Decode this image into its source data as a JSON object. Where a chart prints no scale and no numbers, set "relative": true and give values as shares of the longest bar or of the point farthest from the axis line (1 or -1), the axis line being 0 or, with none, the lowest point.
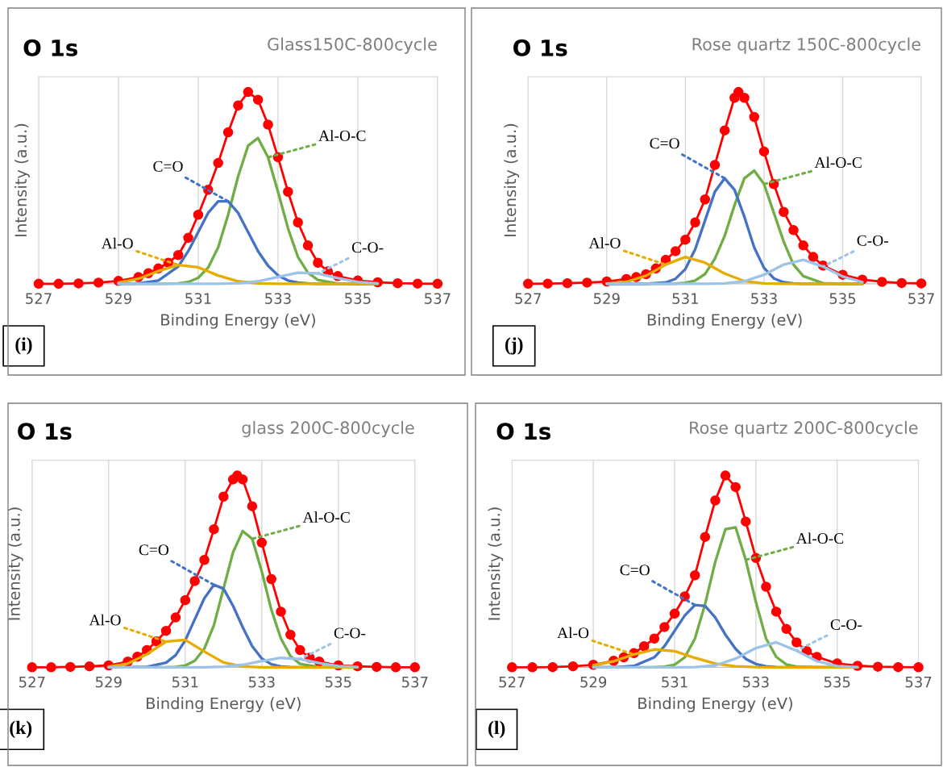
{
  "chart_data": [
    {
      "type": "line",
      "title": "O 1s",
      "subtitle": "Glass150C-800cycle",
      "xlabel": "Binding Energy (eV)",
      "ylabel": "Intensity (a.u.)",
      "relative": true,
      "grid": "x",
      "xlim": [
        527,
        537
      ],
      "xticks": [
        527,
        529,
        531,
        533,
        535,
        537
      ],
      "x": [
        529,
        529.5,
        530,
        530.5,
        531,
        531.5,
        532,
        532.5,
        533,
        533.5,
        534,
        534.5,
        535,
        535.5
      ],
      "annotations": [
        {
          "text": "Al-O-C",
          "x": 532.75,
          "y": 0.66
        },
        {
          "text": "C=O",
          "x": 531.75,
          "y": 0.43
        },
        {
          "text": "Al-O",
          "x": 530.5,
          "y": 0.098
        },
        {
          "text": "C-O-",
          "x": 534,
          "y": 0.054
        },
        "(i)"
      ],
      "series": [
        {
          "color": "#ff0000",
          "marker": "circle",
          "x": [
            527,
            527.5,
            528,
            528.5,
            529,
            529.5,
            529.75,
            530,
            530.25,
            530.5,
            530.75,
            531,
            531.25,
            531.5,
            531.75,
            532,
            532.25,
            532.5,
            532.75,
            533,
            533.25,
            533.5,
            533.75,
            534,
            534.25,
            534.5,
            535,
            535.5,
            536,
            536.5,
            537
          ],
          "values": [
            0,
            0,
            0.002,
            0.006,
            0.015,
            0.035,
            0.055,
            0.08,
            0.11,
            0.15,
            0.24,
            0.36,
            0.49,
            0.63,
            0.79,
            0.93,
            1.0,
            0.96,
            0.83,
            0.66,
            0.48,
            0.32,
            0.2,
            0.11,
            0.065,
            0.04,
            0.017,
            0.008,
            0.003,
            0.001,
            0
          ]
        },
        {
          "color": "#70ad47",
          "x": [
            529,
            529.5,
            530,
            530.5,
            530.75,
            531,
            531.25,
            531.5,
            531.75,
            532,
            532.25,
            532.5,
            532.75,
            533,
            533.25,
            533.5,
            533.75,
            534,
            534.5,
            535,
            535.5
          ],
          "values": [
            0,
            0,
            0,
            0.002,
            0.009,
            0.031,
            0.085,
            0.19,
            0.36,
            0.56,
            0.72,
            0.76,
            0.66,
            0.48,
            0.29,
            0.14,
            0.058,
            0.02,
            0.001,
            0,
            0
          ]
        },
        {
          "color": "#4472c4",
          "x": [
            529,
            529.5,
            530,
            530.5,
            530.75,
            531,
            531.25,
            531.5,
            531.75,
            532,
            532.25,
            532.5,
            532.75,
            533,
            533.25,
            533.5,
            533.75,
            534,
            534.5,
            535,
            535.5
          ],
          "values": [
            0,
            0.002,
            0.017,
            0.09,
            0.17,
            0.27,
            0.37,
            0.43,
            0.43,
            0.37,
            0.27,
            0.17,
            0.094,
            0.044,
            0.017,
            0.006,
            0.002,
            0,
            0,
            0,
            0
          ]
        },
        {
          "color": "#e6ac00",
          "values": [
            0.006,
            0.026,
            0.066,
            0.098,
            0.086,
            0.043,
            0.013,
            0.002,
            0,
            0,
            0,
            0,
            0,
            0
          ]
        },
        {
          "color": "#9dc3e6",
          "values": [
            0,
            0,
            0,
            0,
            0,
            0,
            0.003,
            0.013,
            0.036,
            0.058,
            0.054,
            0.029,
            0.009,
            0.002
          ]
        }
      ]
    },
    {
      "type": "line",
      "title": "O 1s",
      "subtitle": "Rose quartz 150C-800cycle",
      "xlabel": "Binding Energy (eV)",
      "ylabel": "Intensity (a.u.)",
      "relative": true,
      "grid": "x",
      "xlim": [
        527,
        537
      ],
      "xticks": [
        527,
        529,
        531,
        533,
        535,
        537
      ],
      "x": [
        529,
        529.5,
        530,
        530.5,
        531,
        531.5,
        532,
        532.5,
        533,
        533.5,
        534,
        534.5,
        535,
        535.5
      ],
      "annotations": [
        {
          "text": "Al-O-C",
          "x": 533,
          "y": 0.52
        },
        {
          "text": "C=O",
          "x": 532,
          "y": 0.55
        },
        {
          "text": "Al-O",
          "x": 530.5,
          "y": 0.1
        },
        {
          "text": "C-O-",
          "x": 534.5,
          "y": 0.09
        },
        "(j)"
      ],
      "series": [
        {
          "color": "#ff0000",
          "marker": "circle",
          "x": [
            527,
            527.5,
            528,
            528.5,
            529,
            529.5,
            529.75,
            530,
            530.25,
            530.5,
            530.75,
            531,
            531.25,
            531.5,
            531.75,
            532,
            532.25,
            532.35,
            532.5,
            532.75,
            533,
            533.25,
            533.5,
            533.75,
            534,
            534.25,
            534.5,
            535,
            535.5,
            536,
            536.5,
            537
          ],
          "values": [
            0,
            0.001,
            0.003,
            0.006,
            0.012,
            0.025,
            0.035,
            0.05,
            0.08,
            0.125,
            0.17,
            0.23,
            0.32,
            0.44,
            0.62,
            0.8,
            0.97,
            1.0,
            0.97,
            0.87,
            0.69,
            0.52,
            0.375,
            0.28,
            0.2,
            0.14,
            0.095,
            0.047,
            0.022,
            0.01,
            0.004,
            0.002
          ]
        },
        {
          "color": "#70ad47",
          "x": [
            529,
            529.5,
            530,
            530.5,
            530.75,
            531,
            531.25,
            531.5,
            531.75,
            532,
            532.25,
            532.5,
            532.75,
            533,
            533.25,
            533.5,
            533.75,
            534,
            534.5,
            535,
            535.5
          ],
          "values": [
            0,
            0,
            0,
            0,
            0.001,
            0.005,
            0.017,
            0.051,
            0.13,
            0.25,
            0.41,
            0.55,
            0.59,
            0.52,
            0.37,
            0.22,
            0.1,
            0.04,
            0.003,
            0,
            0
          ]
        },
        {
          "color": "#4472c4",
          "x": [
            529,
            529.5,
            530,
            530.5,
            530.75,
            531,
            531.25,
            531.5,
            531.75,
            532,
            532.25,
            532.5,
            532.75,
            533,
            533.25,
            533.5,
            533.75,
            534,
            534.5,
            535,
            535.5
          ],
          "values": [
            0,
            0,
            0,
            0.007,
            0.026,
            0.077,
            0.18,
            0.33,
            0.48,
            0.55,
            0.49,
            0.35,
            0.19,
            0.083,
            0.028,
            0.008,
            0.002,
            0,
            0,
            0,
            0
          ]
        },
        {
          "color": "#e6ac00",
          "values": [
            0.001,
            0.01,
            0.042,
            0.1,
            0.14,
            0.11,
            0.053,
            0.014,
            0.002,
            0,
            0,
            0,
            0,
            0
          ]
        },
        {
          "color": "#9dc3e6",
          "values": [
            0,
            0,
            0,
            0,
            0,
            0,
            0.002,
            0.013,
            0.047,
            0.1,
            0.125,
            0.09,
            0.038,
            0.009
          ]
        }
      ]
    },
    {
      "type": "line",
      "title": "O 1s",
      "subtitle": "glass 200C-800cycle",
      "xlabel": "Binding Energy (eV)",
      "ylabel": "Intensity (a.u.)",
      "relative": true,
      "grid": "x",
      "xlim": [
        527,
        537
      ],
      "xticks": [
        527,
        529,
        531,
        533,
        535,
        537
      ],
      "x": [
        529,
        529.5,
        530,
        530.5,
        531,
        531.5,
        532,
        532.5,
        533,
        533.5,
        534,
        534.5,
        535,
        535.5
      ],
      "annotations": [
        {
          "text": "Al-O-C",
          "x": 532.75,
          "y": 0.67
        },
        {
          "text": "C=O",
          "x": 531.75,
          "y": 0.43
        },
        {
          "text": "Al-O",
          "x": 530.5,
          "y": 0.134
        },
        {
          "text": "C-O-",
          "x": 534,
          "y": 0.043
        },
        "(k)"
      ],
      "series": [
        {
          "color": "#ff0000",
          "marker": "circle",
          "x": [
            527,
            527.5,
            528,
            528.5,
            529,
            529.5,
            529.75,
            530,
            530.25,
            530.5,
            530.75,
            531,
            531.25,
            531.5,
            531.75,
            532,
            532.25,
            532.36,
            532.5,
            532.75,
            533,
            533.25,
            533.5,
            533.75,
            534,
            534.25,
            534.5,
            535,
            535.5,
            536,
            536.5,
            537
          ],
          "values": [
            0,
            0,
            0.002,
            0.005,
            0.01,
            0.03,
            0.055,
            0.09,
            0.135,
            0.19,
            0.26,
            0.35,
            0.45,
            0.56,
            0.72,
            0.89,
            0.98,
            1.0,
            0.98,
            0.84,
            0.65,
            0.46,
            0.29,
            0.17,
            0.09,
            0.05,
            0.03,
            0.01,
            0.005,
            0.002,
            0,
            0
          ]
        },
        {
          "color": "#70ad47",
          "x": [
            529,
            529.5,
            530,
            530.5,
            530.75,
            531,
            531.25,
            531.5,
            531.75,
            532,
            532.25,
            532.5,
            532.75,
            533,
            533.25,
            533.5,
            533.75,
            534,
            534.5,
            535,
            535.5
          ],
          "values": [
            0,
            0,
            0,
            0,
            0.002,
            0.009,
            0.034,
            0.097,
            0.22,
            0.41,
            0.6,
            0.71,
            0.67,
            0.5,
            0.3,
            0.15,
            0.058,
            0.018,
            0.001,
            0,
            0
          ]
        },
        {
          "color": "#4472c4",
          "x": [
            529,
            529.5,
            530,
            530.5,
            530.75,
            531,
            531.25,
            531.5,
            531.75,
            532,
            532.25,
            532.5,
            532.75,
            533,
            533.25,
            533.5,
            533.75,
            534,
            534.5,
            535,
            535.5
          ],
          "values": [
            0,
            0,
            0.002,
            0.024,
            0.063,
            0.14,
            0.25,
            0.36,
            0.43,
            0.41,
            0.32,
            0.21,
            0.11,
            0.046,
            0.016,
            0.004,
            0.001,
            0,
            0,
            0,
            0
          ]
        },
        {
          "color": "#e6ac00",
          "values": [
            0.003,
            0.019,
            0.068,
            0.134,
            0.143,
            0.082,
            0.025,
            0.004,
            0,
            0,
            0,
            0,
            0,
            0
          ]
        },
        {
          "color": "#9dc3e6",
          "values": [
            0,
            0,
            0,
            0,
            0,
            0,
            0.003,
            0.013,
            0.033,
            0.049,
            0.043,
            0.022,
            0.006,
            0.001
          ]
        }
      ]
    },
    {
      "type": "line",
      "title": "O 1s",
      "subtitle": "Rose quartz 200C-800cycle",
      "xlabel": "Binding Energy (eV)",
      "ylabel": "Intensity (a.u.)",
      "relative": true,
      "grid": "x",
      "xlim": [
        527,
        537
      ],
      "xticks": [
        527,
        529,
        531,
        533,
        535,
        537
      ],
      "x": [
        529,
        529.5,
        530,
        530.5,
        531,
        531.5,
        532,
        532.5,
        533,
        533.5,
        534,
        534.5,
        535,
        535.5
      ],
      "annotations": [
        {
          "text": "Al-O-C",
          "x": 532.75,
          "y": 0.56
        },
        {
          "text": "C=O",
          "x": 531.5,
          "y": 0.325
        },
        {
          "text": "Al-O",
          "x": 530,
          "y": 0.067
        },
        {
          "text": "C-O-",
          "x": 534,
          "y": 0.087
        },
        "(l)"
      ],
      "series": [
        {
          "color": "#ff0000",
          "marker": "circle",
          "x": [
            527,
            527.5,
            528,
            528.5,
            529,
            529.5,
            529.75,
            530,
            530.25,
            530.5,
            530.75,
            531,
            531.25,
            531.5,
            531.75,
            532,
            532.25,
            532.5,
            532.75,
            533,
            533.25,
            533.5,
            533.75,
            534,
            534.25,
            534.5,
            535,
            535.5,
            536,
            536.5,
            537
          ],
          "values": [
            0,
            0,
            0.001,
            0.005,
            0.013,
            0.034,
            0.052,
            0.074,
            0.11,
            0.15,
            0.21,
            0.28,
            0.37,
            0.48,
            0.68,
            0.87,
            1.0,
            0.94,
            0.76,
            0.57,
            0.42,
            0.29,
            0.2,
            0.13,
            0.085,
            0.054,
            0.02,
            0.008,
            0.003,
            0.001,
            0
          ]
        },
        {
          "color": "#70ad47",
          "x": [
            529,
            529.5,
            530,
            530.5,
            530.75,
            531,
            531.25,
            531.5,
            531.75,
            532,
            532.25,
            532.5,
            532.75,
            533,
            533.25,
            533.5,
            533.75,
            534,
            534.5,
            535,
            535.5
          ],
          "values": [
            0,
            0,
            0,
            0,
            0.003,
            0.014,
            0.052,
            0.15,
            0.33,
            0.55,
            0.72,
            0.73,
            0.56,
            0.34,
            0.15,
            0.054,
            0.015,
            0.003,
            0,
            0,
            0
          ]
        },
        {
          "color": "#4472c4",
          "x": [
            529,
            529.5,
            530,
            530.5,
            530.75,
            531,
            531.25,
            531.5,
            531.75,
            532,
            532.25,
            532.5,
            532.75,
            533,
            533.25,
            533.5,
            533.75,
            534,
            534.5,
            535,
            535.5
          ],
          "values": [
            0,
            0,
            0.007,
            0.052,
            0.11,
            0.19,
            0.27,
            0.325,
            0.32,
            0.26,
            0.17,
            0.096,
            0.044,
            0.017,
            0.005,
            0.001,
            0,
            0,
            0,
            0,
            0
          ]
        },
        {
          "color": "#e6ac00",
          "values": [
            0.01,
            0.031,
            0.067,
            0.093,
            0.084,
            0.049,
            0.019,
            0.005,
            0.001,
            0,
            0,
            0,
            0,
            0
          ]
        },
        {
          "color": "#9dc3e6",
          "values": [
            0,
            0,
            0,
            0,
            0,
            0.001,
            0.01,
            0.045,
            0.1,
            0.13,
            0.087,
            0.032,
            0.006,
            0.001
          ]
        }
      ]
    }
  ]
}
